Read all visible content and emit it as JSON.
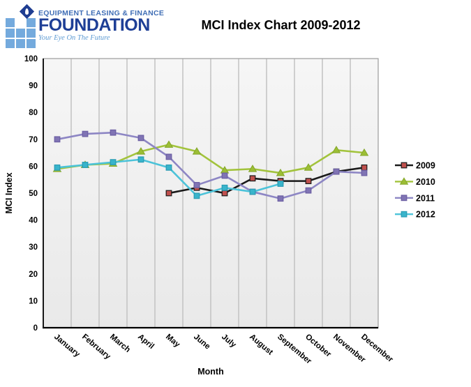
{
  "header": {
    "logo": {
      "line1": "EQUIPMENT LEASING & FINANCE",
      "name": "FOUNDATION",
      "tagline": "Your Eye On The Future",
      "brand_blue_dark": "#1e3f96",
      "brand_blue_mid": "#3f6db5",
      "brand_blue_light": "#74aadd"
    },
    "title": "MCI Index Chart 2009-2012"
  },
  "chart_data": {
    "type": "line",
    "title": "MCI Index Chart 2009-2012",
    "xlabel": "Month",
    "ylabel": "MCI Index",
    "ylim": [
      0,
      100
    ],
    "yticks": [
      0,
      10,
      20,
      30,
      40,
      50,
      60,
      70,
      80,
      90,
      100
    ],
    "grid": "vertical-only",
    "legend_position": "right",
    "plot_background": "#efefef",
    "categories": [
      "January",
      "February",
      "March",
      "April",
      "May",
      "June",
      "July",
      "August",
      "September",
      "October",
      "November",
      "December"
    ],
    "series": [
      {
        "name": "2009",
        "marker": "square",
        "line_color": "#1a1a1a",
        "marker_color": "#c0504d",
        "marker_stroke": "#1a1a1a",
        "values": [
          null,
          null,
          null,
          null,
          50,
          52,
          50,
          55.5,
          54.5,
          54.5,
          58,
          59.5
        ]
      },
      {
        "name": "2010",
        "marker": "triangle",
        "line_color": "#a2c33c",
        "marker_color": "#9cbe35",
        "marker_stroke": "#83a629",
        "values": [
          59,
          60.5,
          61,
          65.5,
          68,
          65.5,
          58.5,
          59,
          57.5,
          59.5,
          66,
          65
        ]
      },
      {
        "name": "2011",
        "marker": "square",
        "line_color": "#8d86c4",
        "marker_color": "#8074b4",
        "marker_stroke": "#6b5ea3",
        "values": [
          70,
          72,
          72.5,
          70.5,
          63.5,
          53,
          56.5,
          50.5,
          48,
          51,
          58,
          57.5
        ]
      },
      {
        "name": "2012",
        "marker": "square",
        "line_color": "#4cc3d9",
        "marker_color": "#39b4cb",
        "marker_stroke": "#2a9cb4",
        "values": [
          59.5,
          60.5,
          61.5,
          62.5,
          59.5,
          49,
          52,
          50.5,
          53.5,
          null,
          null,
          null
        ]
      }
    ]
  }
}
